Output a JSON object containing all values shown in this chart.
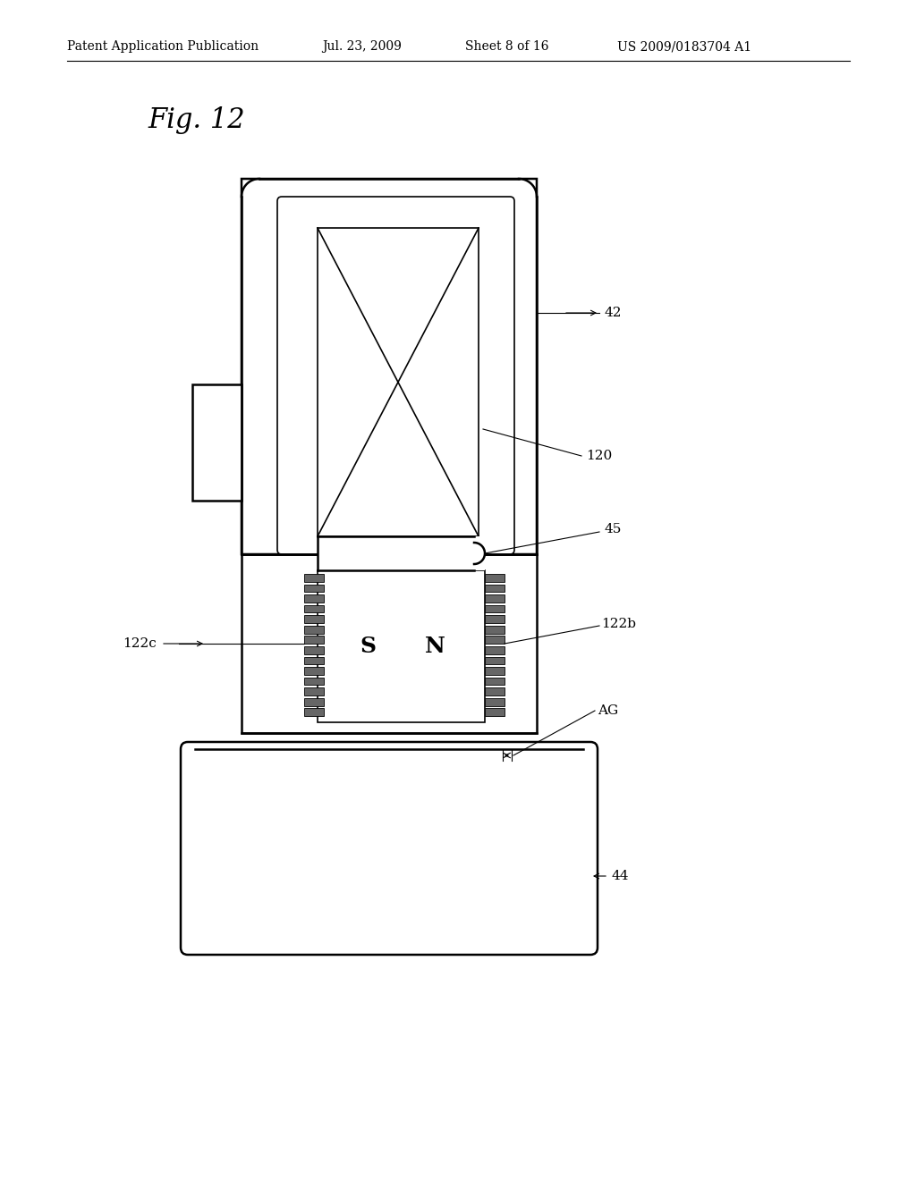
{
  "bg_color": "#ffffff",
  "header_title": "Patent Application Publication",
  "header_date": "Jul. 23, 2009",
  "header_sheet": "Sheet 8 of 16",
  "header_patent": "US 2009/0183704 A1",
  "fig_label": "Fig. 12",
  "label_42": "42",
  "label_120": "120",
  "label_45": "45",
  "label_122c": "122c",
  "label_122b": "122b",
  "label_AG": "AG",
  "label_44": "44",
  "label_S": "S",
  "label_N": "N"
}
